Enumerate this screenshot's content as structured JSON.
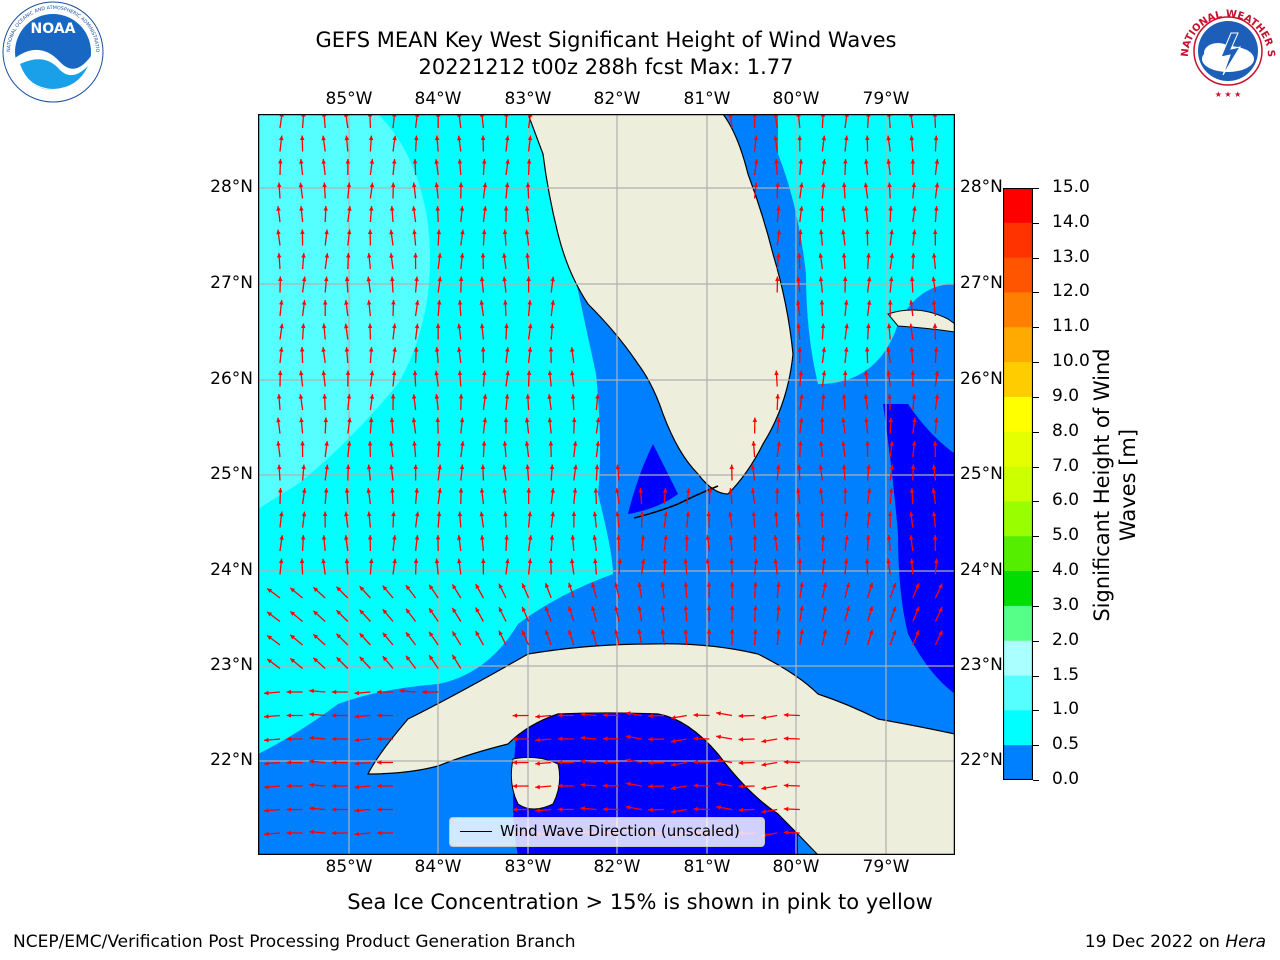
{
  "header": {
    "title_line1": "GEFS MEAN Key West Significant Height of Wind Waves",
    "title_line2": "20221212 t00z 288h fcst   Max: 1.77"
  },
  "logos": {
    "left": "NOAA",
    "left_ring": "NATIONAL OCEANIC AND ATMOSPHERIC ADMINISTRATION · U.S. DEPARTMENT OF COMMERCE",
    "right_ring": "NATIONAL WEATHER SERVICE"
  },
  "map": {
    "lon_labels": [
      "85°W",
      "84°W",
      "83°W",
      "82°W",
      "81°W",
      "80°W",
      "79°W"
    ],
    "lat_labels": [
      "28°N",
      "27°N",
      "26°N",
      "25°N",
      "24°N",
      "23°N",
      "22°N"
    ],
    "legend_label": "Wind Wave Direction (unscaled)",
    "colors": {
      "land": "#eeeedc",
      "band_0_0.5": "#0000ff",
      "band_0.5_1.0": "#0080ff",
      "band_1.0_1.5": "#00ffff",
      "band_1.5_2.0": "#55ffff",
      "arrow": "#ff0000",
      "grid": "#b0b0b0"
    }
  },
  "colorbar": {
    "label": "Significant Height of Wind Waves [m]",
    "ticks": [
      "15.0",
      "14.0",
      "13.0",
      "12.0",
      "11.0",
      "10.0",
      "9.0",
      "8.0",
      "7.0",
      "6.0",
      "5.0",
      "4.0",
      "3.0",
      "2.0",
      "1.5",
      "1.0",
      "0.5",
      "0.0"
    ],
    "band_colors": [
      "#ff0000",
      "#ff3300",
      "#ff5500",
      "#ff8000",
      "#ffaa00",
      "#ffcc00",
      "#ffff00",
      "#e6ff00",
      "#ccff00",
      "#99ff00",
      "#55ee00",
      "#00dd00",
      "#55ff88",
      "#aaffff",
      "#55ffff",
      "#00ffff",
      "#0080ff",
      "#0000ff"
    ]
  },
  "footer": {
    "note": "Sea Ice Concentration > 15% is shown in pink to yellow",
    "credit_left": "NCEP/EMC/Verification Post Processing Product Generation Branch",
    "credit_right_date": "19 Dec 2022 on ",
    "credit_right_host": "Hera"
  }
}
